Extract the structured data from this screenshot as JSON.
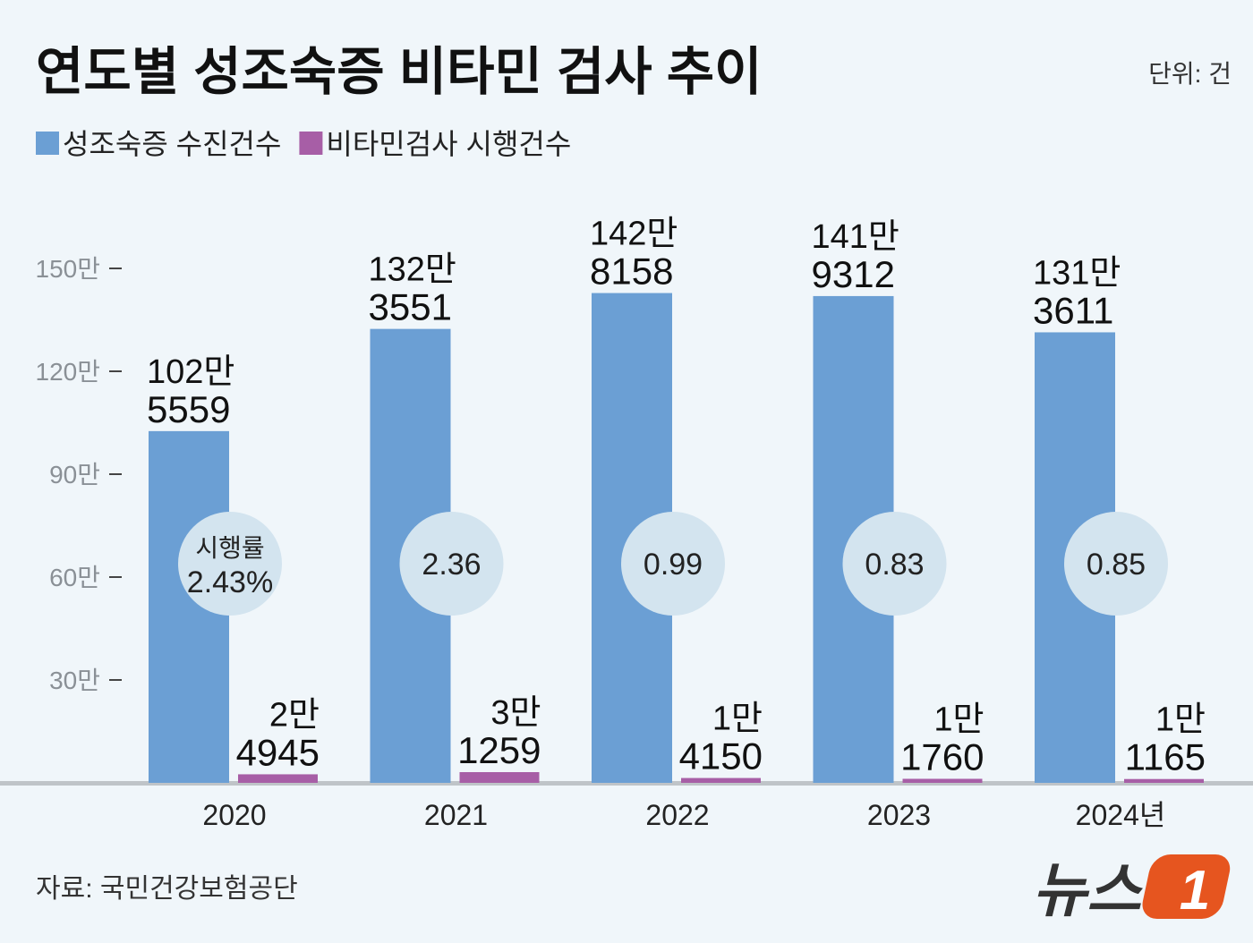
{
  "chart_data": {
    "type": "bar",
    "title": "연도별 성조숙증 비타민 검사 추이",
    "unit": "단위: 건",
    "source": "자료: 국민건강보험공단",
    "logo": [
      "뉴스",
      "1"
    ],
    "categories": [
      "2020",
      "2021",
      "2022",
      "2023",
      "2024년"
    ],
    "series": [
      {
        "name": "성조숙증 수진건수",
        "color": "#6b9fd4",
        "values": [
          1025559,
          1323551,
          1428158,
          1419312,
          1313611
        ],
        "value_labels": [
          [
            "102만",
            "5559"
          ],
          [
            "132만",
            "3551"
          ],
          [
            "142만",
            "8158"
          ],
          [
            "141만",
            "9312"
          ],
          [
            "131만",
            "3611"
          ]
        ]
      },
      {
        "name": "비타민검사 시행건수",
        "color": "#a75ea6",
        "values": [
          24945,
          31259,
          14150,
          11760,
          11165
        ],
        "value_labels": [
          [
            "2만",
            "4945"
          ],
          [
            "3만",
            "1259"
          ],
          [
            "1만",
            "4150"
          ],
          [
            "1만",
            "1760"
          ],
          [
            "1만",
            "1165"
          ]
        ]
      }
    ],
    "rate_label": "시행률",
    "rates": [
      {
        "value": 2.43,
        "label": "2.43%"
      },
      2.36,
      0.99,
      0.83,
      0.85
    ],
    "ylim": [
      0,
      1500000
    ],
    "yticks": [
      {
        "value": 300000,
        "label": "30만"
      },
      {
        "value": 600000,
        "label": "60만"
      },
      {
        "value": 900000,
        "label": "90만"
      },
      {
        "value": 1200000,
        "label": "120만"
      },
      {
        "value": 1500000,
        "label": "150만"
      }
    ]
  }
}
